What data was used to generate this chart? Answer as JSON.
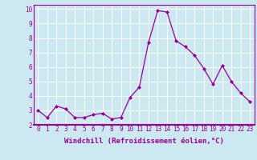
{
  "x": [
    0,
    1,
    2,
    3,
    4,
    5,
    6,
    7,
    8,
    9,
    10,
    11,
    12,
    13,
    14,
    15,
    16,
    17,
    18,
    19,
    20,
    21,
    22,
    23
  ],
  "y": [
    3.0,
    2.5,
    3.3,
    3.1,
    2.5,
    2.5,
    2.7,
    2.8,
    2.4,
    2.5,
    3.9,
    4.6,
    7.7,
    9.9,
    9.8,
    7.8,
    7.4,
    6.8,
    5.9,
    4.8,
    6.1,
    5.0,
    4.2,
    3.6
  ],
  "line_color": "#990099",
  "marker": "D",
  "marker_size": 2,
  "bg_color": "#cce8f0",
  "grid_color": "#ffffff",
  "xlabel": "Windchill (Refroidissement éolien,°C)",
  "xlim": [
    -0.5,
    23.5
  ],
  "ylim": [
    2.0,
    10.3
  ],
  "xticks": [
    0,
    1,
    2,
    3,
    4,
    5,
    6,
    7,
    8,
    9,
    10,
    11,
    12,
    13,
    14,
    15,
    16,
    17,
    18,
    19,
    20,
    21,
    22,
    23
  ],
  "yticks": [
    2,
    3,
    4,
    5,
    6,
    7,
    8,
    9,
    10
  ],
  "tick_label_size": 5.5,
  "xlabel_size": 6.5
}
